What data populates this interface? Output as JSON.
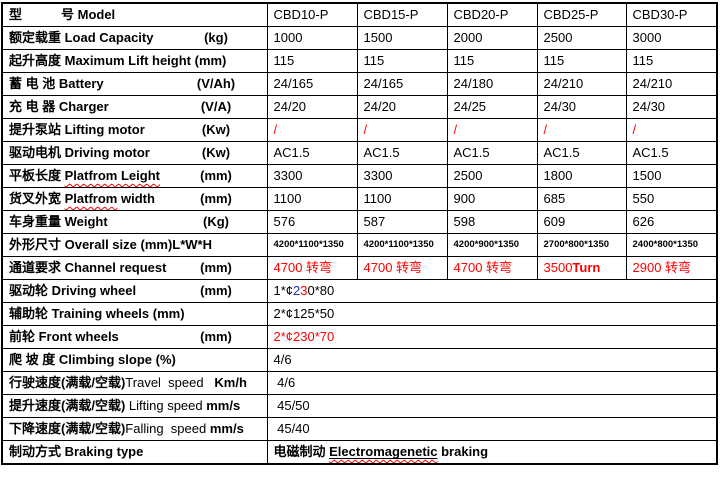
{
  "colors": {
    "text": "#000000",
    "red": "#ff0000",
    "blue": "#2b2bb0",
    "border": "#000000",
    "squiggle": "#ff0000",
    "background": "#ffffff"
  },
  "table": {
    "model_columns": [
      "CBD10-P",
      "CBD15-P",
      "CBD20-P",
      "CBD25-P",
      "CBD30-P"
    ],
    "rows": [
      {
        "key": "model",
        "label": [
          {
            "t": "型　　　号 Model"
          }
        ],
        "cells": [
          "CBD10-P",
          "CBD15-P",
          "CBD20-P",
          "CBD25-P",
          "CBD30-P"
        ]
      },
      {
        "key": "load-capacity",
        "label": [
          {
            "t": "额定载重 Load Capacity"
          }
        ],
        "unit": "(kg)",
        "cells": [
          "1000",
          "1500",
          "2000",
          "2500",
          "3000"
        ]
      },
      {
        "key": "max-lift-height",
        "label": [
          {
            "t": "起升高度 Maximum Lift height (mm)"
          }
        ],
        "cells": [
          "115",
          "115",
          "115",
          "115",
          "115"
        ]
      },
      {
        "key": "battery",
        "label": [
          {
            "t": "蓄 电 池 Battery"
          }
        ],
        "unit": "(V/Ah)",
        "cells": [
          "24/165",
          "24/165",
          "24/180",
          "24/210",
          "24/210"
        ]
      },
      {
        "key": "charger",
        "label": [
          {
            "t": "充 电 器 Charger"
          }
        ],
        "unit": "(V/A)",
        "cells": [
          "24/20",
          "24/20",
          "24/25",
          "24/30",
          "24/30"
        ]
      },
      {
        "key": "lifting-motor",
        "label": [
          {
            "t": "提升泵站 Lifting motor"
          }
        ],
        "unit": "(Kw)",
        "cells": [
          [
            {
              "t": "/",
              "c": "red"
            }
          ],
          [
            {
              "t": "/",
              "c": "red"
            }
          ],
          [
            {
              "t": "/",
              "c": "red"
            }
          ],
          [
            {
              "t": "/",
              "c": "red"
            }
          ],
          [
            {
              "t": "/",
              "c": "red"
            }
          ]
        ]
      },
      {
        "key": "driving-motor",
        "label": [
          {
            "t": "驱动电机 Driving motor"
          }
        ],
        "unit": "(Kw)",
        "cells": [
          "AC1.5",
          "AC1.5",
          "AC1.5",
          "AC1.5",
          "AC1.5"
        ]
      },
      {
        "key": "platform-length",
        "label": [
          {
            "t": "平板长度 "
          },
          {
            "t": "Platfrom Leight",
            "sq": 1
          }
        ],
        "unit": "(mm)",
        "cells": [
          "3300",
          "3300",
          "2500",
          "1800",
          "1500"
        ]
      },
      {
        "key": "platform-width",
        "label": [
          {
            "t": "货叉外宽 "
          },
          {
            "t": "Platfrom",
            "sq": 1
          },
          {
            "t": " width"
          }
        ],
        "unit": "(mm)",
        "cells": [
          "1100",
          "1100",
          "900",
          "685",
          "550"
        ]
      },
      {
        "key": "weight",
        "label": [
          {
            "t": "车身重量 Weight"
          }
        ],
        "unit": "(Kg)",
        "cells": [
          "576",
          "587",
          "598",
          "609",
          "626"
        ]
      },
      {
        "key": "overall-size",
        "small": true,
        "label": [
          {
            "t": "外形尺寸 Overall size (mm)L*W*H"
          }
        ],
        "cells": [
          "4200*1100*1350",
          "4200*1100*1350",
          "4200*900*1350",
          "2700*800*1350",
          "2400*800*1350"
        ]
      },
      {
        "key": "channel-request",
        "label": [
          {
            "t": "通道要求 Channel request"
          }
        ],
        "unit": "(mm)",
        "cells": [
          [
            {
              "t": "4700 转弯",
              "c": "red"
            }
          ],
          [
            {
              "t": "4700 转弯",
              "c": "red"
            }
          ],
          [
            {
              "t": "4700 转弯",
              "c": "red"
            }
          ],
          [
            {
              "t": "3500",
              "c": "red"
            },
            {
              "t": "Turn",
              "c": "red",
              "b": 1
            }
          ],
          [
            {
              "t": "2900 转弯",
              "c": "red"
            }
          ]
        ]
      },
      {
        "key": "driving-wheel",
        "span": true,
        "label": [
          {
            "t": "驱动轮 Driving wheel"
          }
        ],
        "unit": "(mm)",
        "cells": [
          [
            {
              "t": "1*¢"
            },
            {
              "t": "2",
              "c": "blue"
            },
            {
              "t": "3",
              "c": "red"
            },
            {
              "t": "0*80"
            }
          ]
        ]
      },
      {
        "key": "training-wheels",
        "span": true,
        "label": [
          {
            "t": "辅助轮 Training wheels (mm)"
          }
        ],
        "cells": [
          "2*¢125*50"
        ]
      },
      {
        "key": "front-wheels",
        "span": true,
        "label": [
          {
            "t": "前轮 Front wheels"
          }
        ],
        "unit": "(mm)",
        "cells": [
          [
            {
              "t": "2*¢230*70",
              "c": "red"
            }
          ]
        ]
      },
      {
        "key": "climbing-slope",
        "span": true,
        "label": [
          {
            "t": "爬 坡 度 Climbing slope (%)"
          }
        ],
        "cells": [
          "4/6"
        ]
      },
      {
        "key": "travel-speed",
        "span": true,
        "label": [
          {
            "t": "行驶速度"
          },
          {
            "t": "(满载/空载)"
          },
          {
            "t": "Travel  speed",
            "n": 1
          },
          {
            "t": "   Km/h"
          }
        ],
        "cells": [
          " 4/6"
        ]
      },
      {
        "key": "lifting-speed",
        "span": true,
        "label": [
          {
            "t": "提升速度(满载/空载) "
          },
          {
            "t": "Lifting speed ",
            "n": 1
          },
          {
            "t": "mm/s"
          }
        ],
        "cells": [
          " 45/50"
        ]
      },
      {
        "key": "falling-speed",
        "span": true,
        "label": [
          {
            "t": "下降速度(满载/空载)"
          },
          {
            "t": "Falling  speed ",
            "n": 1
          },
          {
            "t": "mm/s"
          }
        ],
        "cells": [
          " 45/40"
        ]
      },
      {
        "key": "braking-type",
        "span": true,
        "label": [
          {
            "t": "制动方式 Braking type"
          }
        ],
        "cells": [
          [
            {
              "t": "电磁制动 ",
              "b": 1
            },
            {
              "t": "Electromagenetic",
              "b": 1,
              "sq": 1,
              "u": 1
            },
            {
              "t": " braking",
              "b": 1
            }
          ]
        ]
      }
    ]
  }
}
